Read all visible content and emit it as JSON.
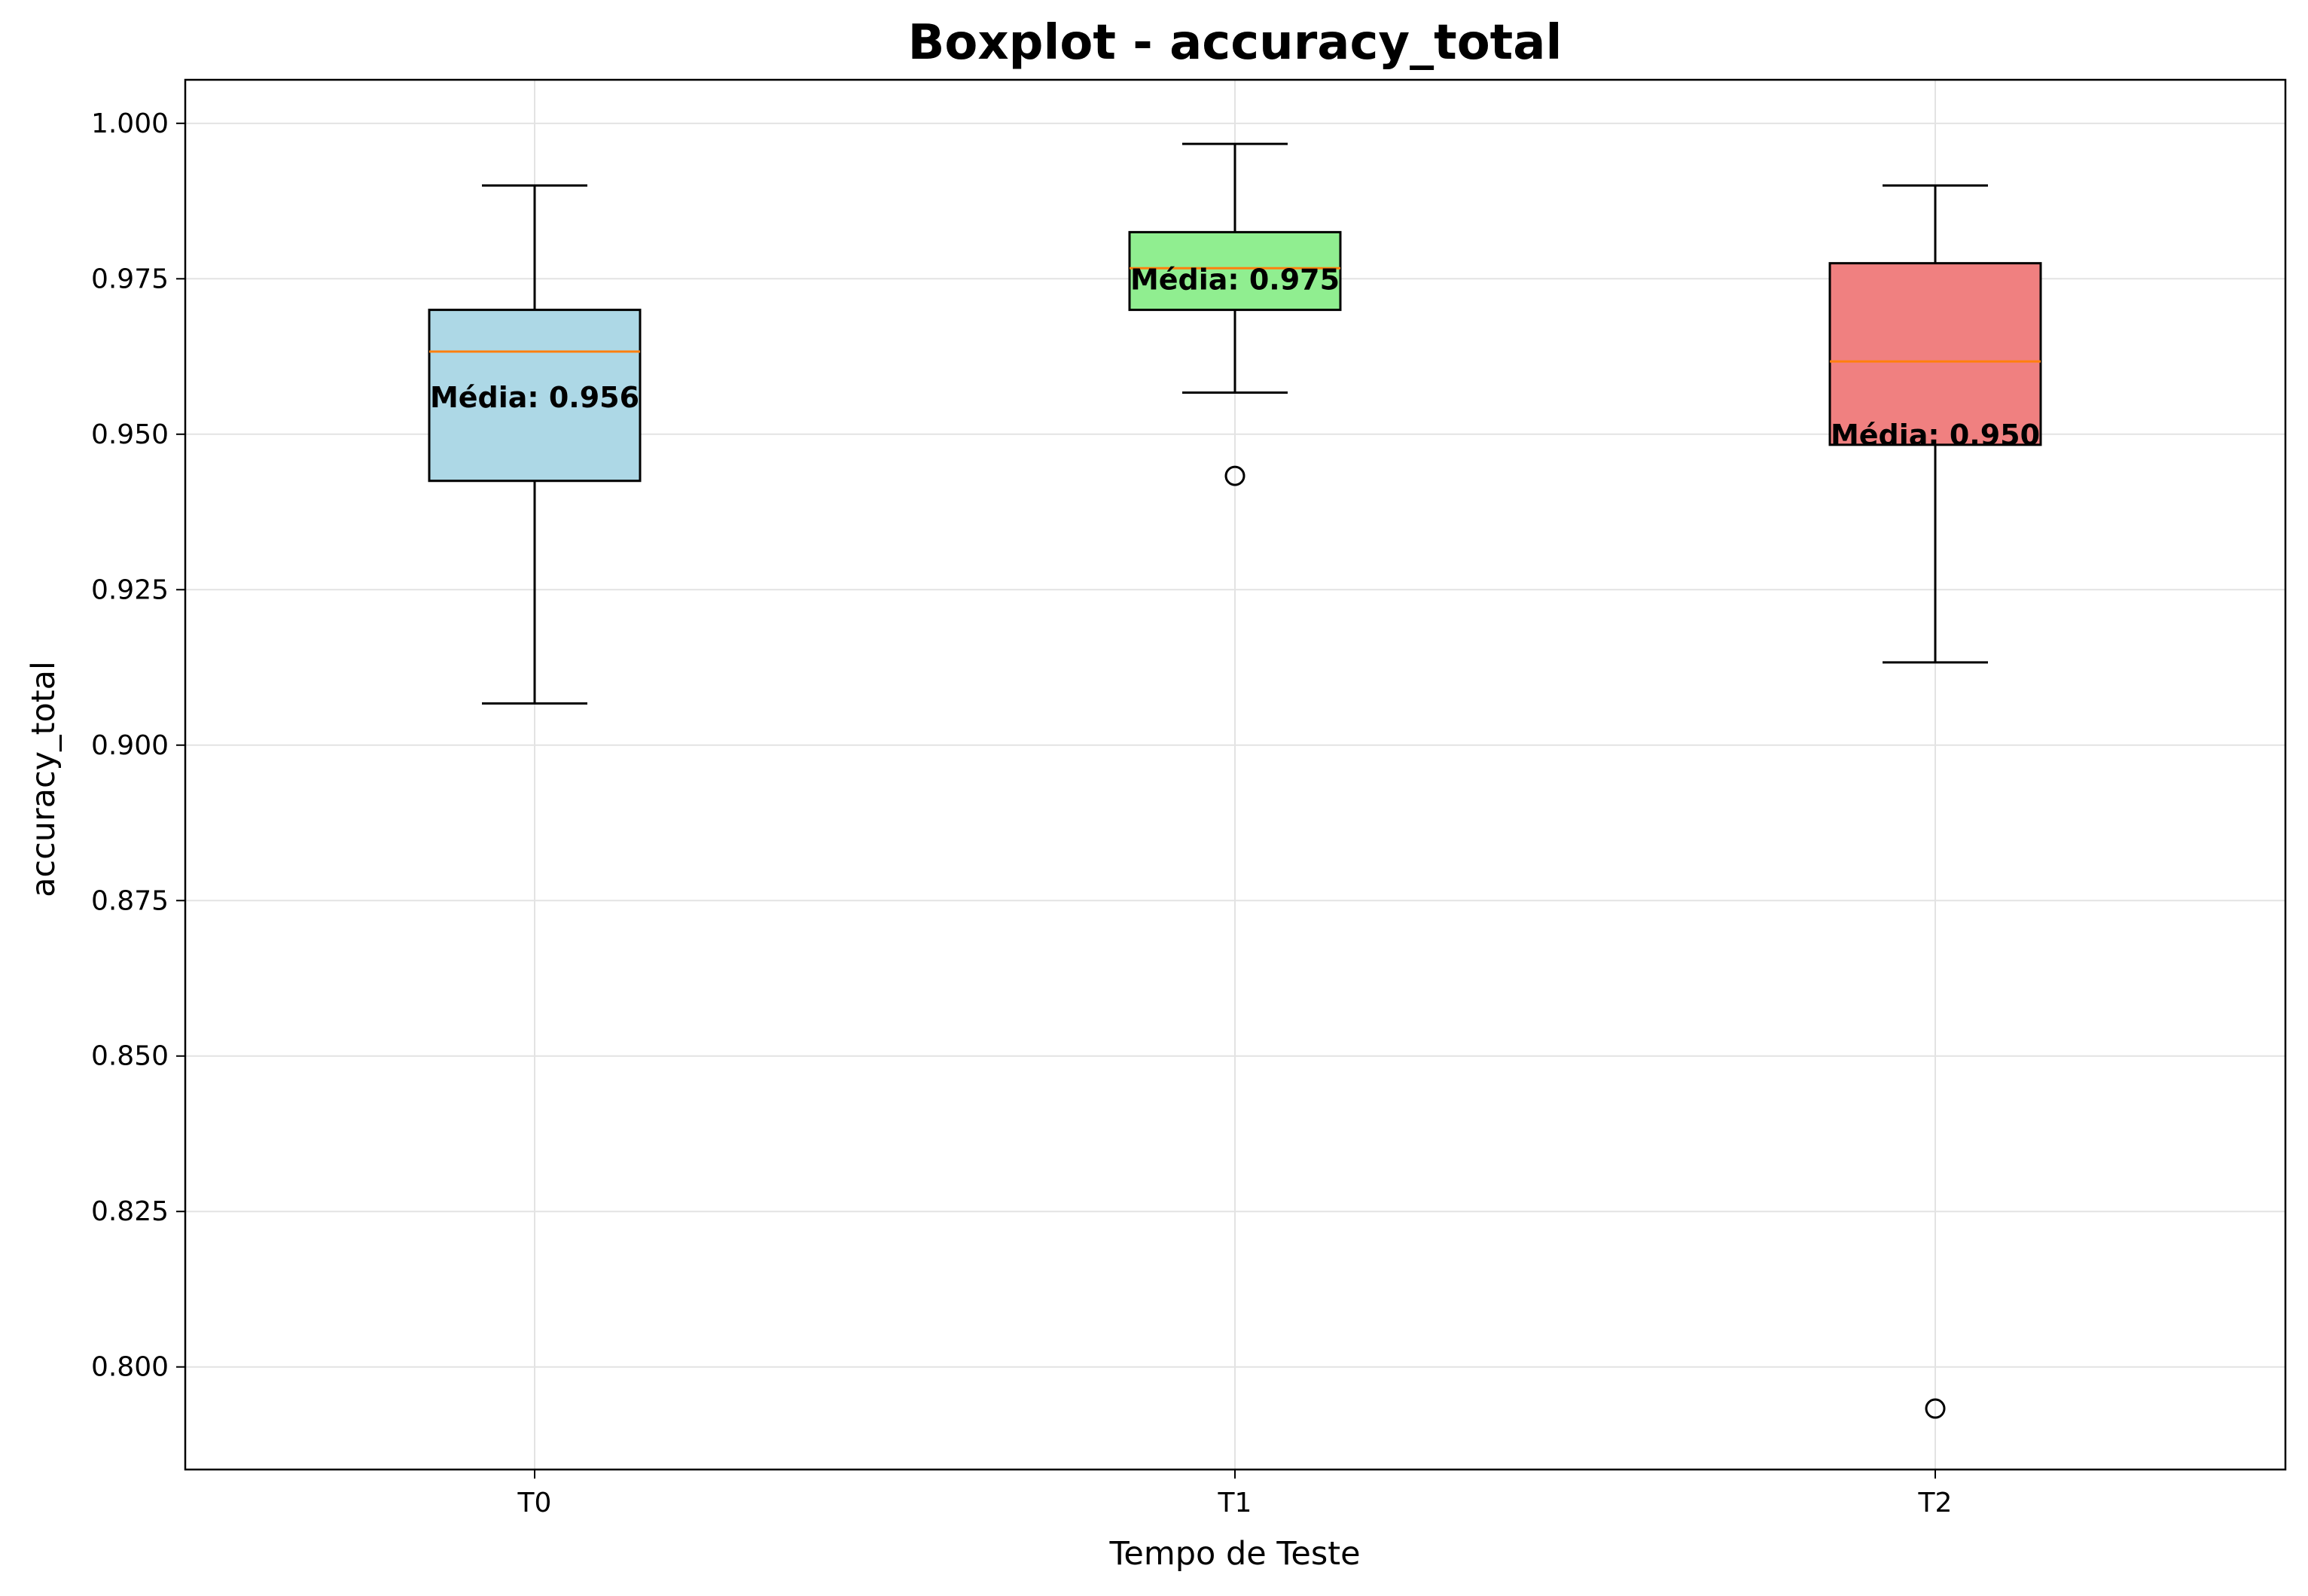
{
  "chart_data": {
    "type": "boxplot",
    "title": "Boxplot - accuracy_total",
    "xlabel": "Tempo de Teste",
    "ylabel": "accuracy_total",
    "categories": [
      "T0",
      "T1",
      "T2"
    ],
    "ylim": [
      0.7835,
      1.007
    ],
    "yticks": [
      0.8,
      0.825,
      0.85,
      0.875,
      0.9,
      0.925,
      0.95,
      0.975,
      1.0
    ],
    "ytick_labels": [
      "0.800",
      "0.825",
      "0.850",
      "0.875",
      "0.900",
      "0.925",
      "0.950",
      "0.975",
      "1.000"
    ],
    "grid": true,
    "boxes": [
      {
        "category": "T0",
        "whisker_low": 0.9067,
        "q1": 0.9425,
        "median": 0.9633,
        "q3": 0.97,
        "whisker_high": 0.99,
        "mean": 0.956,
        "outliers": [],
        "color": "#add8e6",
        "mean_label": "Média: 0.956"
      },
      {
        "category": "T1",
        "whisker_low": 0.9567,
        "q1": 0.97,
        "median": 0.9767,
        "q3": 0.9825,
        "whisker_high": 0.9967,
        "mean": 0.975,
        "outliers": [
          0.9433
        ],
        "color": "#90ee90",
        "mean_label": "Média: 0.975"
      },
      {
        "category": "T2",
        "whisker_low": 0.9133,
        "q1": 0.9483,
        "median": 0.9617,
        "q3": 0.9775,
        "whisker_high": 0.99,
        "mean": 0.95,
        "outliers": [
          0.7933
        ],
        "color": "#f08080",
        "mean_label": "Média: 0.950"
      }
    ],
    "median_color": "#ff7f0e"
  }
}
